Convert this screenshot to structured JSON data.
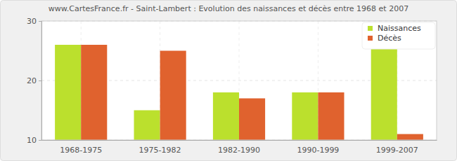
{
  "chart_data": {
    "type": "bar",
    "title": "www.CartesFrance.fr - Saint-Lambert : Evolution des naissances et décès entre 1968 et 2007",
    "categories": [
      "1968-1975",
      "1975-1982",
      "1982-1990",
      "1990-1999",
      "1999-2007"
    ],
    "series": [
      {
        "name": "Naissances",
        "color": "#bbe02d",
        "values": [
          26,
          15,
          18,
          18,
          26
        ]
      },
      {
        "name": "Décès",
        "color": "#e0622e",
        "values": [
          26,
          25,
          17,
          18,
          11
        ]
      }
    ],
    "ylim": [
      10,
      30
    ],
    "yticks": [
      10,
      20,
      30
    ],
    "grid": true,
    "legend": "top-right"
  }
}
